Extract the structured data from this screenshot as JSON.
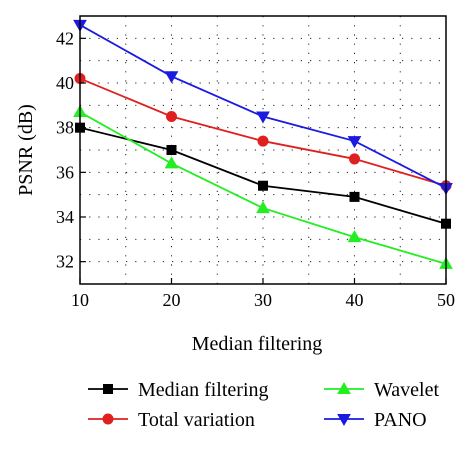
{
  "chart_data": {
    "type": "line",
    "title": "",
    "xlabel": "Median filtering",
    "ylabel": "PSNR (dB)",
    "xlim": [
      10,
      50
    ],
    "ylim": [
      31,
      43
    ],
    "xticks": [
      10,
      20,
      30,
      40,
      50
    ],
    "yticks": [
      32,
      34,
      36,
      38,
      40,
      42
    ],
    "grid": true,
    "legend_position": "bottom",
    "series": [
      {
        "name": "Median filtering",
        "color": "#000000",
        "marker": "square",
        "x": [
          10,
          20,
          30,
          40,
          50
        ],
        "y": [
          38.0,
          37.0,
          35.4,
          34.9,
          33.7
        ]
      },
      {
        "name": "Total variation",
        "color": "#e02020",
        "marker": "circle",
        "x": [
          10,
          20,
          30,
          40,
          50
        ],
        "y": [
          40.2,
          38.5,
          37.4,
          36.6,
          35.4
        ]
      },
      {
        "name": "Wavelet",
        "color": "#22ee22",
        "marker": "triangle-up",
        "x": [
          10,
          20,
          30,
          40,
          50
        ],
        "y": [
          38.7,
          36.4,
          34.4,
          33.1,
          31.9
        ]
      },
      {
        "name": "PANO",
        "color": "#1a1ae0",
        "marker": "triangle-down",
        "x": [
          10,
          20,
          30,
          40,
          50
        ],
        "y": [
          42.6,
          40.3,
          38.5,
          37.4,
          35.3
        ]
      }
    ]
  }
}
